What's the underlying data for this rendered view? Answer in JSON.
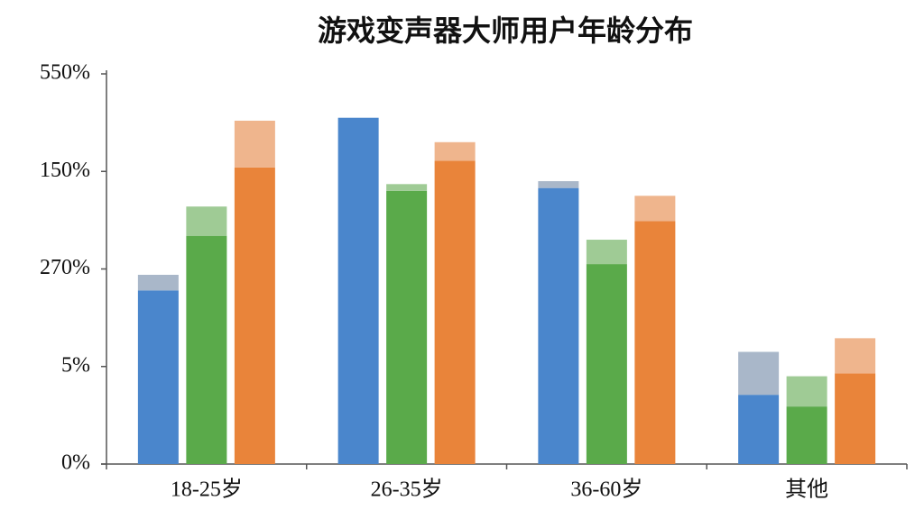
{
  "chart_data": {
    "type": "bar",
    "title": "游戏变声器大师用户年龄分布",
    "categories": [
      "18-25岁",
      "26-35岁",
      "36-60岁",
      "其他"
    ],
    "series": [
      {
        "color": "#4a86cc",
        "cap_color": "#a9b7c9",
        "values": [
          1.78,
          3.55,
          2.83,
          0.71
        ],
        "caps": [
          0.16,
          0,
          0.07,
          0.44
        ]
      },
      {
        "color": "#5aaa4a",
        "cap_color": "#9fcb95",
        "values": [
          2.34,
          2.8,
          2.05,
          0.59
        ],
        "caps": [
          0.3,
          0.07,
          0.25,
          0.31
        ]
      },
      {
        "color": "#e9843a",
        "cap_color": "#efb58d",
        "values": [
          3.04,
          3.11,
          2.49,
          0.93
        ],
        "caps": [
          0.48,
          0.19,
          0.26,
          0.36
        ]
      }
    ],
    "ylim": [
      0,
      4
    ],
    "yticks": [
      {
        "value": 0,
        "label": "0%"
      },
      {
        "value": 1,
        "label": "5%"
      },
      {
        "value": 2,
        "label": "270%"
      },
      {
        "value": 3,
        "label": "150%"
      },
      {
        "value": 4,
        "label": "550%"
      }
    ]
  }
}
